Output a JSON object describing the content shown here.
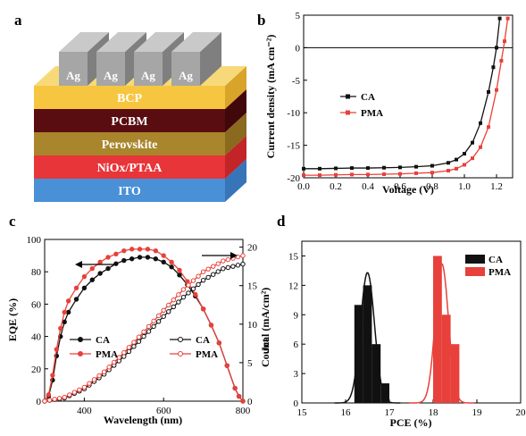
{
  "colors": {
    "ca": "#111111",
    "pma": "#e8403a"
  },
  "panel_a": {
    "letter": "a",
    "electrode_label": "Ag",
    "layers": [
      {
        "label": "BCP",
        "front": "#f6c640",
        "top": "#f8d97a",
        "side": "#d9a42a"
      },
      {
        "label": "PCBM",
        "front": "#5a0d10",
        "top": "#7a1d20",
        "side": "#40080a"
      },
      {
        "label": "Perovskite",
        "front": "#a9852c",
        "top": "#c4a048",
        "side": "#8a6a1e"
      },
      {
        "label": "NiOx/PTAA",
        "front": "#e8353a",
        "top": "#f05a5e",
        "side": "#c22428"
      },
      {
        "label": "ITO",
        "front": "#4a90d6",
        "top": "#7ab0e6",
        "side": "#3774b8"
      }
    ]
  },
  "chart_data": [
    {
      "panel": "b",
      "type": "line",
      "xlabel": "Voltage (V)",
      "ylabel": "Current density (mA cm⁻²)",
      "xlim": [
        0,
        1.3
      ],
      "ylim": [
        -20,
        5
      ],
      "xticks": [
        "0.0",
        "0.2",
        "0.4",
        "0.6",
        "0.8",
        "1.0",
        "1.2"
      ],
      "yticks": [
        "5",
        "0",
        "-5",
        "-10",
        "-15",
        "-20"
      ],
      "legend": "center-left",
      "series": [
        {
          "name": "CA",
          "x": [
            0,
            0.1,
            0.2,
            0.3,
            0.4,
            0.5,
            0.6,
            0.7,
            0.8,
            0.9,
            0.95,
            1.0,
            1.05,
            1.1,
            1.15,
            1.18,
            1.2,
            1.22
          ],
          "y": [
            -18.6,
            -18.6,
            -18.55,
            -18.5,
            -18.5,
            -18.45,
            -18.4,
            -18.3,
            -18.15,
            -17.7,
            -17.2,
            -16.3,
            -14.6,
            -11.6,
            -6.8,
            -3.0,
            0.0,
            4.5
          ]
        },
        {
          "name": "PMA",
          "x": [
            0,
            0.1,
            0.2,
            0.3,
            0.4,
            0.5,
            0.6,
            0.7,
            0.8,
            0.9,
            0.95,
            1.0,
            1.05,
            1.1,
            1.15,
            1.2,
            1.23,
            1.25,
            1.27
          ],
          "y": [
            -19.6,
            -19.6,
            -19.55,
            -19.5,
            -19.5,
            -19.45,
            -19.4,
            -19.3,
            -19.2,
            -18.9,
            -18.6,
            -18.0,
            -17.0,
            -15.3,
            -12.2,
            -6.5,
            -2.0,
            1.0,
            4.5
          ]
        }
      ]
    },
    {
      "panel": "c",
      "type": "line",
      "xlabel": "Wavelength (nm)",
      "ylabel": "EQE (%)",
      "ylabel_right": "Jcal (mA/cm²)",
      "xlim": [
        300,
        800
      ],
      "ylim": [
        0,
        100
      ],
      "ylim_right": [
        0,
        21
      ],
      "xticks": [
        "400",
        "600",
        "800"
      ],
      "yticks": [
        "0",
        "20",
        "40",
        "60",
        "80",
        "100"
      ],
      "yticks_right": [
        "0",
        "5",
        "10",
        "15",
        "20"
      ],
      "legend": "bottom-left and bottom-right",
      "series": [
        {
          "name": "CA",
          "axis": "left",
          "x": [
            300,
            310,
            320,
            330,
            340,
            350,
            360,
            380,
            400,
            420,
            440,
            460,
            480,
            500,
            520,
            540,
            560,
            580,
            600,
            620,
            640,
            660,
            680,
            700,
            720,
            740,
            760,
            780,
            790,
            800
          ],
          "y": [
            0,
            3,
            13,
            28,
            40,
            49,
            55,
            63,
            70,
            75,
            79,
            82,
            85,
            87,
            88,
            89,
            89,
            88,
            86,
            83,
            78,
            72,
            65,
            57,
            47,
            36,
            22,
            8,
            3,
            0
          ]
        },
        {
          "name": "PMA",
          "axis": "left",
          "x": [
            300,
            310,
            320,
            330,
            340,
            350,
            360,
            380,
            400,
            420,
            440,
            460,
            480,
            500,
            520,
            540,
            560,
            580,
            600,
            620,
            640,
            660,
            680,
            700,
            720,
            740,
            760,
            780,
            790,
            800
          ],
          "y": [
            0,
            4,
            16,
            32,
            45,
            55,
            62,
            70,
            77,
            82,
            86,
            89,
            91,
            93,
            94,
            94,
            94,
            93,
            90,
            86,
            81,
            74,
            66,
            57,
            47,
            36,
            22,
            8,
            3,
            0
          ]
        },
        {
          "name": "CA",
          "axis": "right",
          "x": [
            300,
            350,
            400,
            450,
            500,
            550,
            600,
            650,
            700,
            750,
            800
          ],
          "y": [
            0,
            0.4,
            1.6,
            3.5,
            5.8,
            8.4,
            11.0,
            13.5,
            15.7,
            17.2,
            17.8
          ]
        },
        {
          "name": "PMA",
          "axis": "right",
          "x": [
            300,
            350,
            400,
            450,
            500,
            550,
            600,
            650,
            700,
            750,
            800
          ],
          "y": [
            0,
            0.5,
            1.8,
            3.8,
            6.3,
            9.0,
            11.8,
            14.5,
            16.8,
            18.2,
            18.9
          ]
        }
      ]
    },
    {
      "panel": "d",
      "type": "bar",
      "xlabel": "PCE (%)",
      "ylabel": "Count",
      "xlim": [
        15,
        20
      ],
      "ylim": [
        0,
        16.5
      ],
      "xticks": [
        "15",
        "16",
        "17",
        "18",
        "19",
        "20"
      ],
      "yticks": [
        "0",
        "3",
        "6",
        "9",
        "12",
        "15"
      ],
      "legend": "top-right",
      "series": [
        {
          "name": "CA",
          "bin_centers": [
            16.3,
            16.5,
            16.7,
            16.9
          ],
          "values": [
            10,
            12,
            6,
            2
          ],
          "fit_mean": 16.5,
          "fit_sd": 0.16,
          "fit_peak": 13.3
        },
        {
          "name": "PMA",
          "bin_centers": [
            18.1,
            18.3,
            18.5
          ],
          "values": [
            15,
            9,
            6
          ],
          "fit_mean": 18.2,
          "fit_sd": 0.15,
          "fit_peak": 14.2
        }
      ]
    }
  ],
  "panel_letters": [
    "b",
    "c",
    "d"
  ]
}
